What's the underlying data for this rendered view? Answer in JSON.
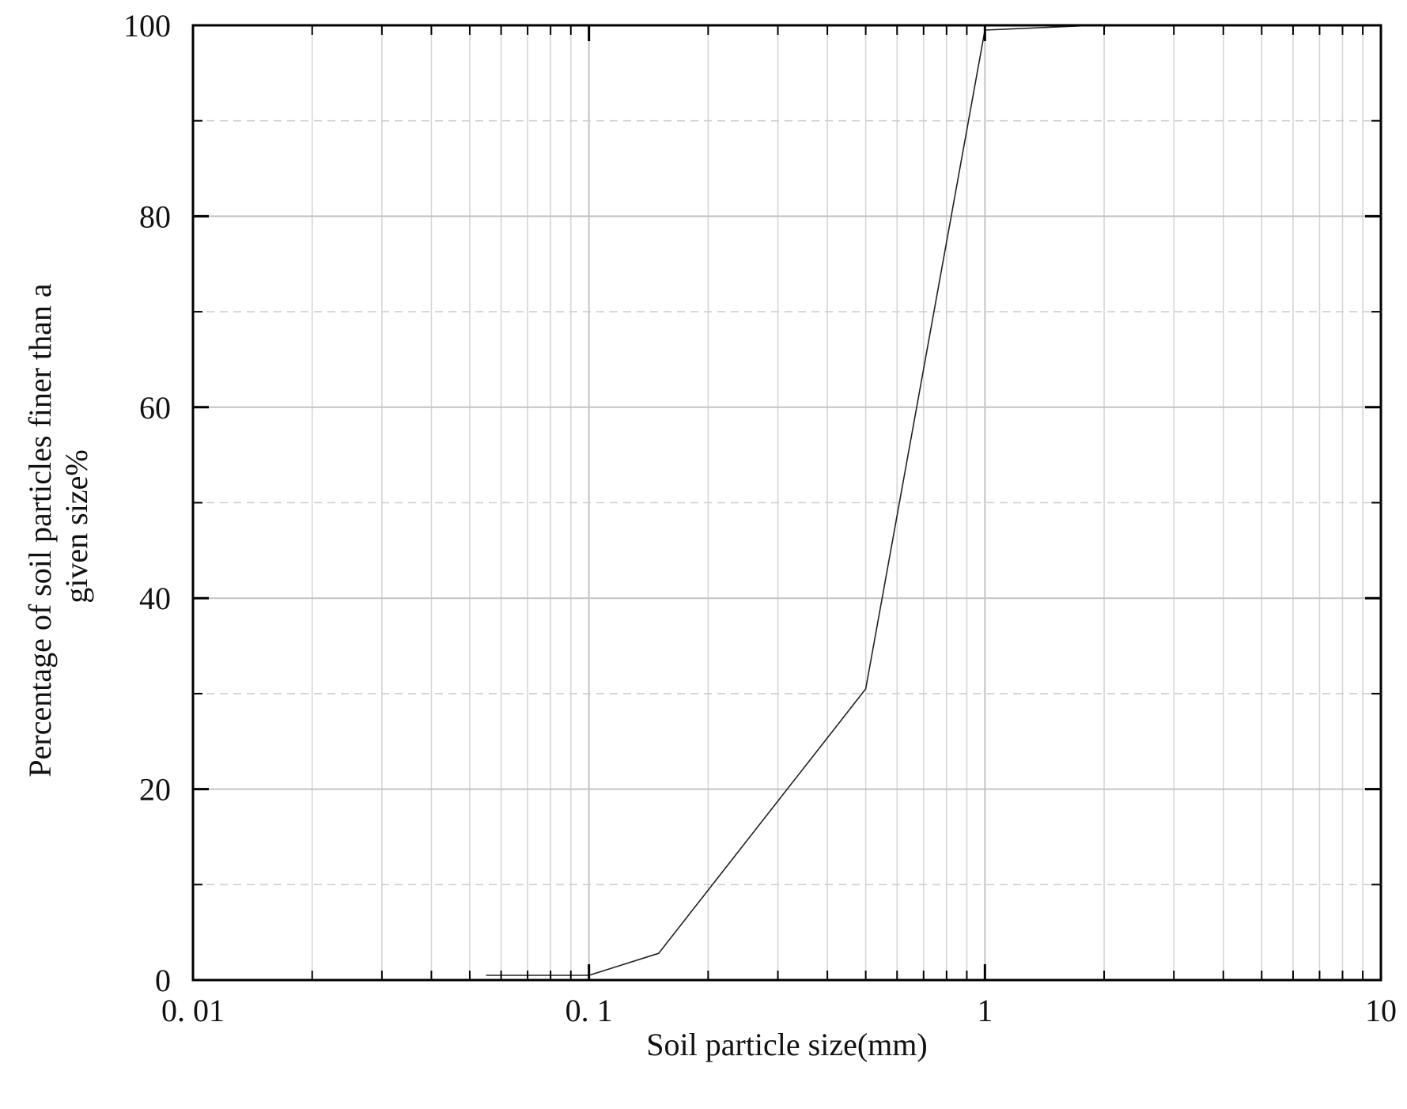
{
  "chart_data": {
    "type": "line",
    "title": "",
    "xlabel": "Soil particle size(mm)",
    "ylabel_lines": [
      "Percentage of soil particles finer than a",
      "given size%"
    ],
    "x_scale": "log",
    "xlim": [
      0.01,
      10
    ],
    "ylim": [
      0,
      100
    ],
    "x_ticks": [
      0.01,
      0.1,
      1,
      10
    ],
    "x_tick_labels": [
      "0. 01",
      "0. 1",
      "1",
      "10"
    ],
    "y_ticks": [
      0,
      20,
      40,
      60,
      80,
      100
    ],
    "y_tick_labels": [
      "0",
      "20",
      "40",
      "60",
      "80",
      "100"
    ],
    "y_minor_ticks": [
      10,
      30,
      50,
      70,
      90
    ],
    "grid": true,
    "legend": "none",
    "series": [
      {
        "x": [
          0.055,
          0.075,
          0.1,
          0.15,
          0.5,
          1,
          1.9
        ],
        "y": [
          0.5,
          0.5,
          0.5,
          2.8,
          30.5,
          99.5,
          100
        ],
        "color": "#222222"
      }
    ]
  }
}
